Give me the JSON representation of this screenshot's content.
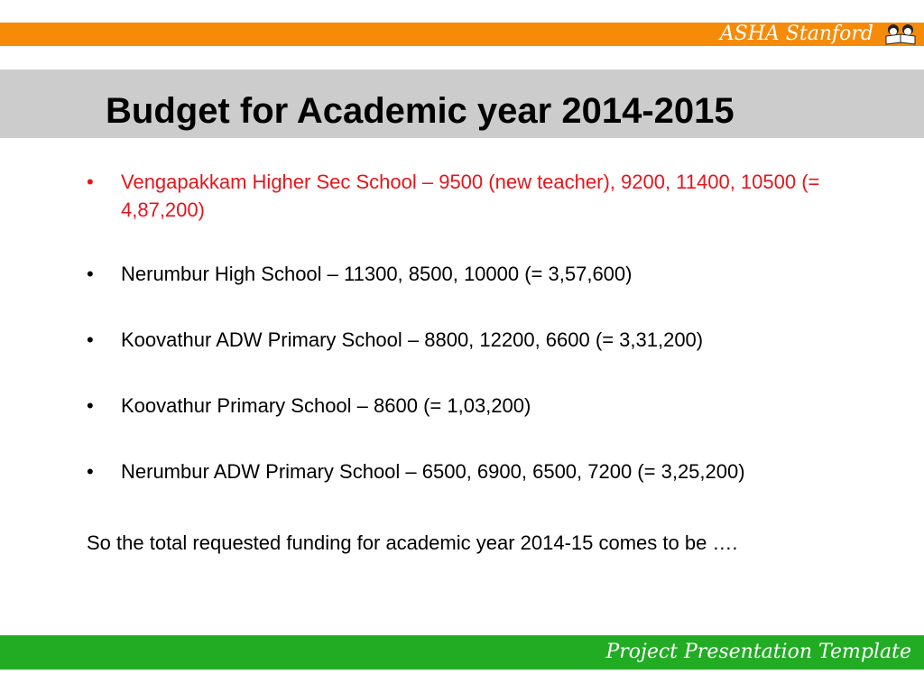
{
  "header": {
    "brand": "ASHA Stanford",
    "logo_icon": "children-reading-book-icon",
    "color": "#f68b0a"
  },
  "slide": {
    "title": "Budget for Academic year 2014-2015",
    "bullets": [
      {
        "text": "Vengapakkam Higher Sec School – 9500 (new teacher), 9200, 11400, 10500 (= 4,87,200)",
        "color": "#e8141b"
      },
      {
        "text": "Nerumbur High School – 11300, 8500, 10000 (= 3,57,600)"
      },
      {
        "text": "Koovathur ADW Primary School – 8800, 12200, 6600 (= 3,31,200)"
      },
      {
        "text": "Koovathur Primary School – 8600 (= 1,03,200)"
      },
      {
        "text": "Nerumbur ADW Primary School – 6500, 6900, 6500, 7200 (= 3,25,200)"
      }
    ],
    "bullet_char": "•",
    "summary": "So the total requested funding for academic year 2014-15 comes to be …."
  },
  "footer": {
    "text": "Project Presentation Template",
    "color": "#22ac24"
  }
}
